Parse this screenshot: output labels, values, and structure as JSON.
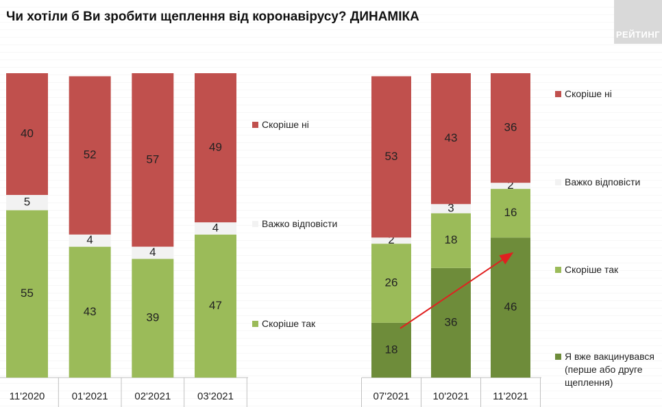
{
  "title": "Чи хотіли б Ви зробити щеплення від коронавірусу? ДИНАМІКА",
  "logo_text": "РЕЙТИНГ",
  "chart_data": [
    {
      "type": "bar",
      "stacked": true,
      "categories": [
        "11'2020",
        "01'2021",
        "02'2021",
        "03'2021"
      ],
      "series": [
        {
          "name": "Скоріше так",
          "color": "#9bbb59",
          "values": [
            55,
            43,
            39,
            47
          ]
        },
        {
          "name": "Важко відповісти",
          "color": "#f2f2f2",
          "values": [
            5,
            4,
            4,
            4
          ]
        },
        {
          "name": "Скоріше ні",
          "color": "#c0504d",
          "values": [
            40,
            52,
            57,
            49
          ]
        }
      ],
      "legend": [
        "Скоріше ні",
        "Важко відповісти",
        "Скоріше так"
      ],
      "ylim": [
        0,
        100
      ]
    },
    {
      "type": "bar",
      "stacked": true,
      "categories": [
        "07'2021",
        "10'2021",
        "11'2021"
      ],
      "series": [
        {
          "name": "Я вже вакцинувався (перше або друге щеплення)",
          "color": "#6e8c3a",
          "values": [
            18,
            36,
            46
          ]
        },
        {
          "name": "Скоріше так",
          "color": "#9bbb59",
          "values": [
            26,
            18,
            16
          ]
        },
        {
          "name": "Важко відповісти",
          "color": "#f2f2f2",
          "values": [
            2,
            3,
            2
          ]
        },
        {
          "name": "Скоріше ні",
          "color": "#c0504d",
          "values": [
            53,
            43,
            36
          ]
        }
      ],
      "legend": [
        "Скоріше ні",
        "Важко відповісти",
        "Скоріше так",
        "Я вже вакцинувався",
        "(перше або друге",
        "щеплення)"
      ],
      "ylim": [
        0,
        100
      ],
      "annotation": "red arrow rising from 07'2021 to 11'2021"
    }
  ]
}
